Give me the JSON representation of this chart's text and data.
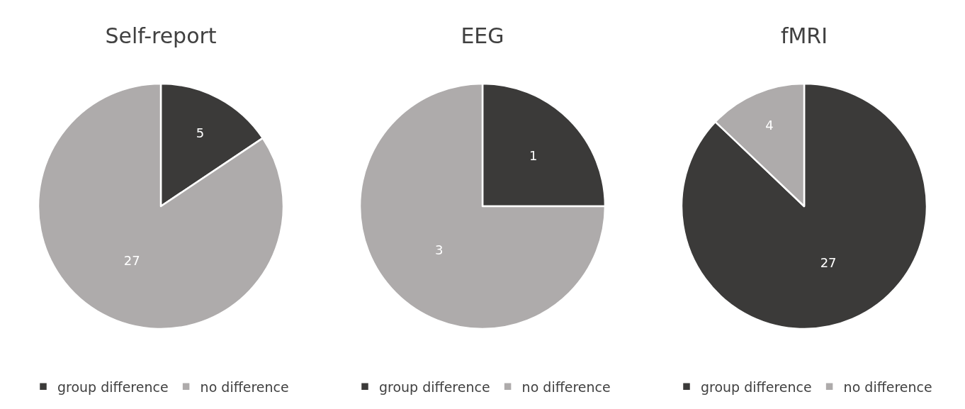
{
  "chart_data": [
    {
      "type": "pie",
      "title": "Self-report",
      "categories": [
        "group difference",
        "no difference"
      ],
      "values": [
        5,
        27
      ],
      "colors": [
        "#3b3a39",
        "#aeabab"
      ],
      "data_labels": true,
      "legend": "bottom"
    },
    {
      "type": "pie",
      "title": "EEG",
      "categories": [
        "group difference",
        "no difference"
      ],
      "values": [
        1,
        3
      ],
      "colors": [
        "#3b3a39",
        "#aeabab"
      ],
      "data_labels": true,
      "legend": "bottom"
    },
    {
      "type": "pie",
      "title": "fMRI",
      "categories": [
        "group difference",
        "no difference"
      ],
      "values": [
        27,
        4
      ],
      "colors": [
        "#3b3a39",
        "#aeabab"
      ],
      "data_labels": true,
      "legend": "bottom"
    }
  ]
}
